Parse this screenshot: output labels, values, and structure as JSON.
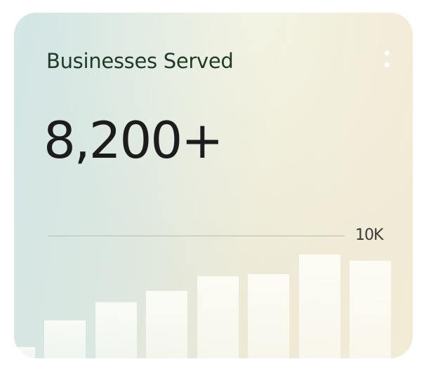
{
  "card": {
    "title": "Businesses Served",
    "value": "8,200+",
    "menu_icon": "more-vertical-icon",
    "reference_label": "10K"
  },
  "chart_data": {
    "type": "bar",
    "reference_line": {
      "value": 10000,
      "label": "10K"
    },
    "values": [
      900,
      3100,
      4600,
      5500,
      6700,
      6900,
      8500,
      8000
    ],
    "ylim": [
      0,
      10000
    ],
    "grid": false
  },
  "colors": {
    "title": "#1f3a27",
    "value": "#1c1c1c",
    "background_left": "#d3e6e5",
    "background_right": "#f2ebd6",
    "bars": "#fffffa"
  }
}
